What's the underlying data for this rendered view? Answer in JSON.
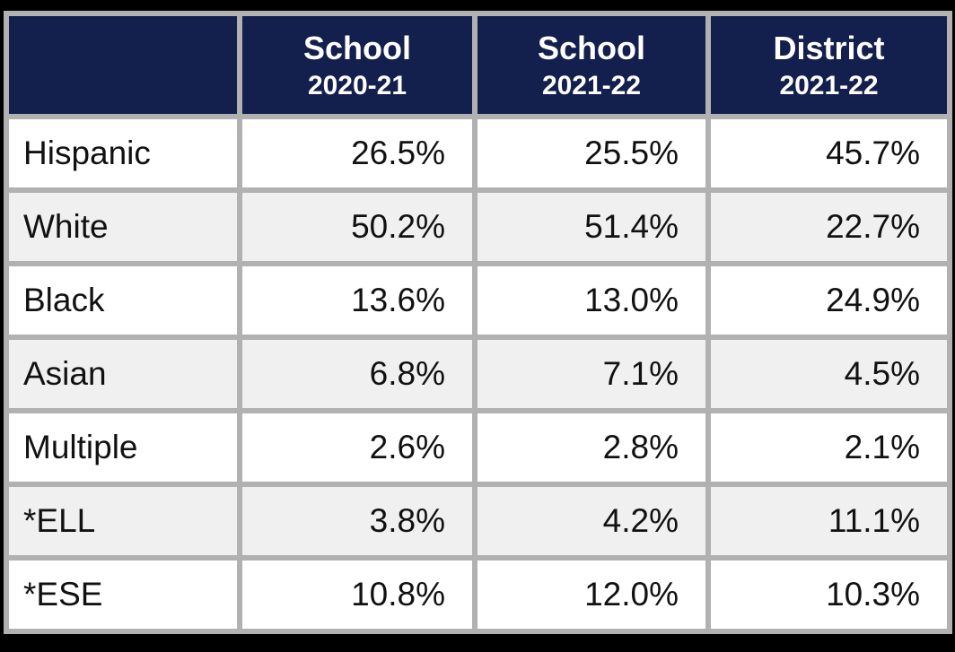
{
  "colors": {
    "frame": "#000000",
    "header_bg": "#131F4D",
    "header_text": "#FFFFFF",
    "grid": "#B1B1B1",
    "row_odd_bg": "#FFFFFF",
    "row_even_bg": "#F0F0F0",
    "body_text": "#111111"
  },
  "chart_data": {
    "type": "table",
    "columns": [
      {
        "title": "",
        "subtitle": ""
      },
      {
        "title": "School",
        "subtitle": "2020-21"
      },
      {
        "title": "School",
        "subtitle": "2021-22"
      },
      {
        "title": "District",
        "subtitle": "2021-22"
      }
    ],
    "rows": [
      {
        "label": "Hispanic",
        "values": [
          "26.5%",
          "25.5%",
          "45.7%"
        ]
      },
      {
        "label": "White",
        "values": [
          "50.2%",
          "51.4%",
          "22.7%"
        ]
      },
      {
        "label": "Black",
        "values": [
          "13.6%",
          "13.0%",
          "24.9%"
        ]
      },
      {
        "label": "Asian",
        "values": [
          "6.8%",
          "7.1%",
          "4.5%"
        ]
      },
      {
        "label": "Multiple",
        "values": [
          "2.6%",
          "2.8%",
          "2.1%"
        ]
      },
      {
        "label": "*ELL",
        "values": [
          "3.8%",
          "4.2%",
          "11.1%"
        ]
      },
      {
        "label": "*ESE",
        "values": [
          "10.8%",
          "12.0%",
          "10.3%"
        ]
      }
    ]
  }
}
